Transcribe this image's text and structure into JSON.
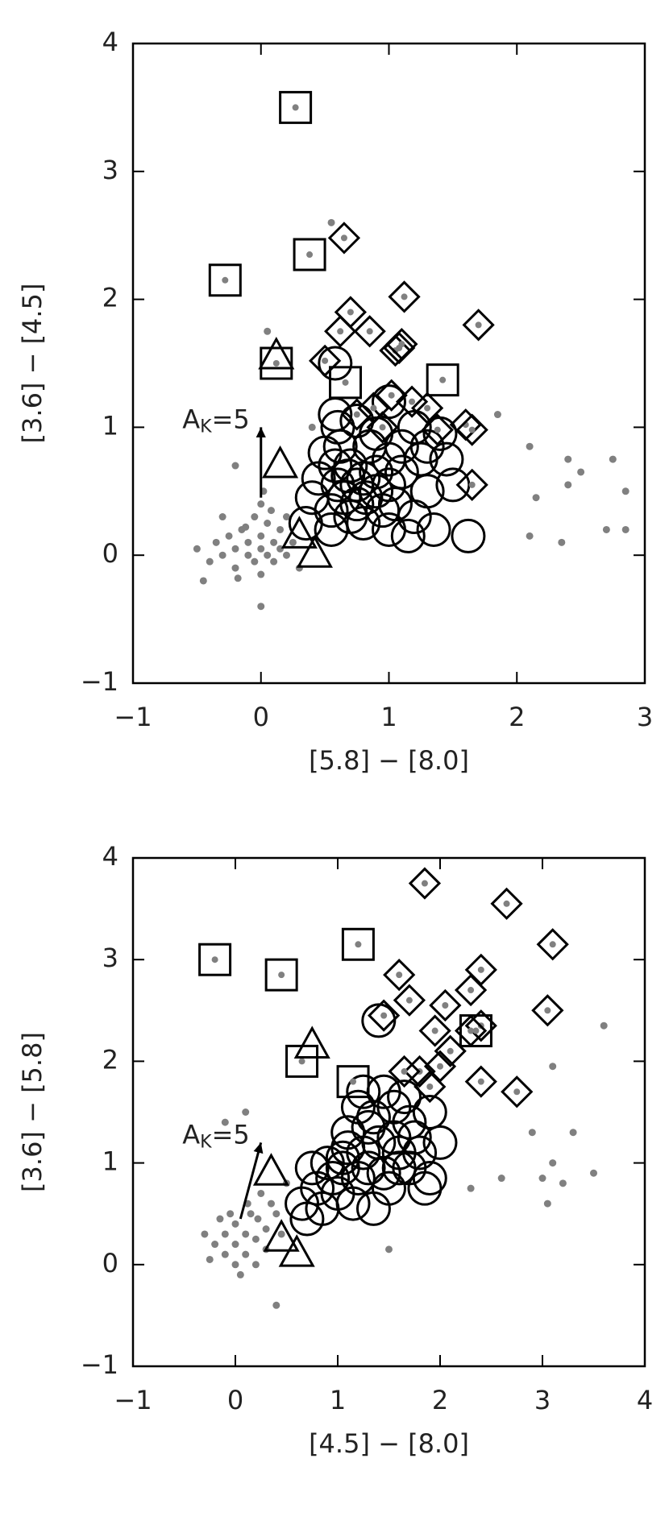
{
  "chart_data": [
    {
      "type": "scatter",
      "xlabel": "[5.8] − [8.0]",
      "ylabel": "[3.6] − [4.5]",
      "xlim": [
        -1,
        3
      ],
      "ylim": [
        -1,
        4
      ],
      "xticks": [
        {
          "value": -1,
          "label": "−1"
        },
        0,
        1,
        2,
        3
      ],
      "yticks": [
        {
          "value": -1,
          "label": "−1"
        },
        0,
        1,
        2,
        3,
        4
      ],
      "annotation": {
        "text": "A",
        "subscript": "K",
        "suffix": "=5"
      },
      "reddening_vector": {
        "x": [
          0,
          0
        ],
        "y": [
          0.45,
          1.0
        ]
      },
      "series": [
        {
          "marker": "dot",
          "color": "#808080",
          "x": [
            -0.5,
            -0.4,
            -0.35,
            -0.3,
            -0.25,
            -0.2,
            -0.2,
            -0.15,
            -0.1,
            -0.1,
            -0.05,
            -0.05,
            0,
            0,
            0,
            0.05,
            0.05,
            0.1,
            0.1,
            0.15,
            0.15,
            0.2,
            0.25,
            0.3,
            -0.3,
            0.0,
            -0.12,
            0.02,
            -0.45,
            0.08,
            -0.18,
            0.2,
            2.1,
            2.4,
            2.5,
            2.75,
            2.85,
            2.15,
            2.4,
            2.1,
            2.35,
            2.7,
            2.85,
            1.85,
            0.55,
            0.05,
            0,
            -0.2,
            0.4
          ],
          "y": [
            0.05,
            -0.05,
            0.1,
            0.0,
            0.15,
            0.05,
            -0.1,
            0.2,
            0.1,
            0.0,
            0.3,
            -0.05,
            0.15,
            0.05,
            -0.15,
            0.25,
            0.0,
            0.1,
            -0.05,
            0.2,
            0.05,
            0.0,
            0.1,
            -0.1,
            0.3,
            0.4,
            0.22,
            0.5,
            -0.2,
            0.35,
            -0.18,
            0.3,
            0.85,
            0.75,
            0.65,
            0.75,
            0.5,
            0.45,
            0.55,
            0.15,
            0.1,
            0.2,
            0.2,
            1.1,
            2.6,
            1.75,
            -0.4,
            0.7,
            1.0
          ]
        },
        {
          "marker": "circle",
          "color": "#000000",
          "x": [
            0.58,
            0.58,
            0.6,
            0.75,
            1.0,
            0.9,
            1.2,
            1.4,
            1.45,
            1.5,
            1.3,
            1.2,
            1.15,
            1.35,
            1.62,
            1.0,
            0.8,
            0.55,
            0.4,
            0.35,
            0.45,
            0.6,
            0.7,
            0.8,
            0.9,
            1.0,
            1.1,
            1.25,
            0.65,
            0.75,
            0.85,
            0.95,
            1.05,
            0.5,
            0.62,
            1.3,
            0.7,
            0.55,
            1.1,
            0.9,
            0.75,
            0.68,
            0.82,
            1.0,
            0.58
          ],
          "y": [
            1.5,
            1.1,
            1.0,
            1.05,
            1.2,
            0.95,
            1.0,
            0.95,
            0.75,
            0.55,
            0.5,
            0.3,
            0.15,
            0.2,
            0.15,
            0.2,
            0.25,
            0.35,
            0.45,
            0.25,
            0.6,
            0.55,
            0.7,
            0.6,
            0.5,
            0.75,
            0.65,
            0.75,
            0.45,
            0.4,
            0.85,
            0.35,
            0.4,
            0.8,
            0.85,
            0.85,
            0.3,
            0.2,
            0.85,
            0.65,
            0.55,
            0.62,
            0.45,
            0.55,
            0.7
          ]
        },
        {
          "marker": "diamond",
          "inner_dot": true,
          "color": "#000000",
          "x": [
            0.65,
            0.7,
            0.62,
            0.85,
            1.12,
            1.7,
            1.05,
            1.08,
            1.1,
            0.5,
            1.02,
            1.18,
            1.3,
            0.88,
            1.6,
            1.65,
            1.38,
            1.65,
            0.95,
            0.75
          ],
          "y": [
            2.48,
            1.9,
            1.75,
            1.75,
            2.02,
            1.8,
            1.6,
            1.62,
            1.65,
            1.52,
            1.25,
            1.2,
            1.15,
            1.15,
            1.02,
            0.98,
            0.98,
            0.55,
            1.0,
            1.1
          ]
        },
        {
          "marker": "square",
          "inner_dot": true,
          "color": "#000000",
          "x": [
            0.27,
            0.38,
            -0.28,
            0.12,
            0.66,
            1.42
          ],
          "y": [
            3.5,
            2.35,
            2.15,
            1.5,
            1.35,
            1.37
          ]
        },
        {
          "marker": "triangle",
          "color": "#000000",
          "x": [
            0.12,
            0.15,
            0.3,
            0.42
          ],
          "y": [
            1.55,
            0.7,
            0.15,
            0.0
          ]
        }
      ]
    },
    {
      "type": "scatter",
      "xlabel": "[4.5] − [8.0]",
      "ylabel": "[3.6] − [5.8]",
      "xlim": [
        -1,
        4
      ],
      "ylim": [
        -1,
        4
      ],
      "xticks": [
        {
          "value": -1,
          "label": "−1"
        },
        0,
        1,
        2,
        3,
        4
      ],
      "yticks": [
        {
          "value": -1,
          "label": "−1"
        },
        0,
        1,
        2,
        3,
        4
      ],
      "annotation": {
        "text": "A",
        "subscript": "K",
        "suffix": "=5"
      },
      "reddening_vector": {
        "x": [
          0.05,
          0.25
        ],
        "y": [
          0.45,
          1.2
        ]
      },
      "series": [
        {
          "marker": "dot",
          "color": "#808080",
          "x": [
            -0.3,
            -0.2,
            -0.1,
            -0.1,
            0,
            0,
            0,
            0.1,
            0.1,
            0.15,
            0.2,
            0.2,
            0.3,
            0.3,
            0.35,
            0.4,
            -0.25,
            -0.05,
            0.05,
            0.25,
            0.45,
            0.5,
            -0.15,
            0.12,
            0.22,
            3.6,
            2.9,
            3.1,
            3.3,
            3.0,
            3.5,
            3.05,
            3.2,
            2.6,
            2.3,
            1.5,
            0.4,
            0.1,
            -0.1,
            3.1
          ],
          "y": [
            0.3,
            0.2,
            0.1,
            0.3,
            0.0,
            0.2,
            0.4,
            0.1,
            0.3,
            0.5,
            0.0,
            0.25,
            0.35,
            0.15,
            0.6,
            0.5,
            0.05,
            0.5,
            -0.1,
            0.7,
            0.3,
            0.8,
            0.45,
            0.6,
            0.45,
            2.35,
            1.3,
            1.0,
            1.3,
            0.85,
            0.9,
            0.6,
            0.8,
            0.85,
            0.75,
            0.15,
            -0.4,
            1.5,
            1.4,
            1.95
          ]
        },
        {
          "marker": "circle",
          "color": "#000000",
          "x": [
            1.4,
            1.25,
            1.3,
            1.55,
            1.7,
            1.9,
            2.0,
            1.8,
            1.6,
            1.9,
            1.35,
            1.5,
            1.2,
            1.05,
            0.95,
            0.8,
            0.65,
            0.7,
            0.9,
            1.1,
            1.25,
            1.4,
            1.55,
            1.75,
            1.45,
            1.3,
            1.0,
            1.15,
            0.85,
            1.65,
            1.45,
            1.2,
            1.05,
            1.7,
            1.85,
            0.75,
            1.1,
            1.6,
            1.35
          ],
          "y": [
            2.4,
            1.7,
            1.35,
            1.55,
            1.4,
            1.5,
            1.2,
            1.1,
            0.95,
            0.85,
            0.55,
            0.75,
            0.85,
            1.05,
            0.85,
            0.75,
            0.6,
            0.45,
            1.0,
            1.3,
            1.1,
            1.2,
            1.25,
            1.25,
            0.9,
            0.95,
            0.7,
            0.6,
            0.55,
            1.65,
            1.7,
            1.55,
            0.95,
            0.95,
            0.75,
            0.95,
            1.15,
            1.1,
            1.45
          ]
        },
        {
          "marker": "diamond",
          "inner_dot": true,
          "color": "#000000",
          "x": [
            1.85,
            2.65,
            3.1,
            3.05,
            1.6,
            2.4,
            2.3,
            1.7,
            2.05,
            2.4,
            2.3,
            1.45,
            1.95,
            1.8,
            2.0,
            2.4,
            2.75,
            1.65,
            1.9,
            2.1
          ],
          "y": [
            3.75,
            3.55,
            3.15,
            2.5,
            2.85,
            2.9,
            2.7,
            2.6,
            2.55,
            2.35,
            2.3,
            2.45,
            2.3,
            1.9,
            1.95,
            1.8,
            1.7,
            1.9,
            1.75,
            2.1
          ]
        },
        {
          "marker": "square",
          "inner_dot": true,
          "color": "#000000",
          "x": [
            -0.2,
            0.45,
            1.2,
            0.65,
            1.15,
            2.35
          ],
          "y": [
            3.0,
            2.85,
            3.15,
            2.0,
            1.8,
            2.3
          ]
        },
        {
          "marker": "triangle",
          "color": "#000000",
          "x": [
            0.75,
            0.35,
            0.45,
            0.6
          ],
          "y": [
            2.15,
            0.9,
            0.25,
            0.1
          ]
        }
      ]
    }
  ]
}
